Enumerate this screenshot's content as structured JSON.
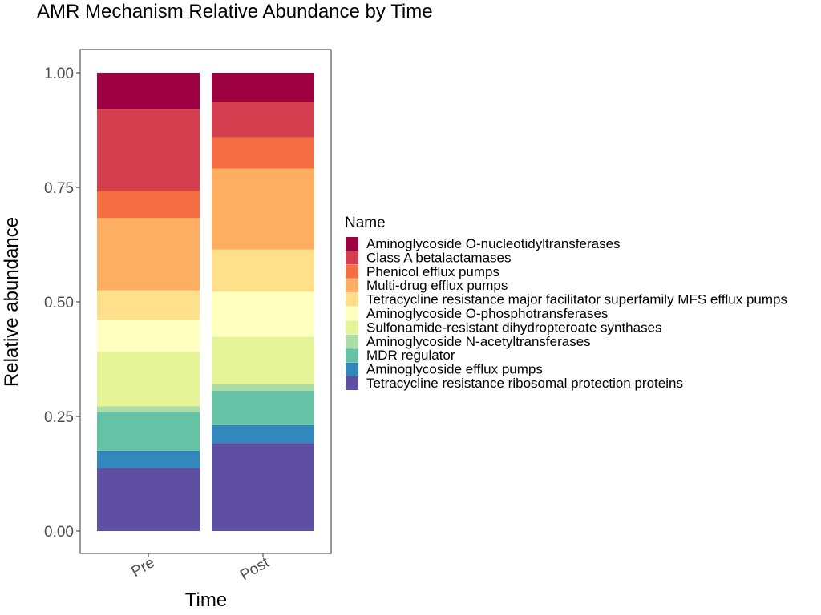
{
  "chart_data": {
    "type": "bar",
    "stacked": true,
    "title": "AMR Mechanism Relative Abundance by Time",
    "xlabel": "Time",
    "ylabel": "Relative abundance",
    "categories": [
      "Pre",
      "Post"
    ],
    "ylim": [
      0,
      1
    ],
    "yticks": [
      0.0,
      0.25,
      0.5,
      0.75,
      1.0
    ],
    "ytick_labels": [
      "0.00",
      "0.25",
      "0.50",
      "0.75",
      "1.00"
    ],
    "grid": false,
    "legend_title": "Name",
    "legend_position": "right",
    "series": [
      {
        "name": "Tetracycline resistance ribosomal protection proteins",
        "color": "#5E4FA2",
        "values": [
          0.137,
          0.192
        ]
      },
      {
        "name": "Aminoglycoside efflux pumps",
        "color": "#3288BD",
        "values": [
          0.038,
          0.039
        ]
      },
      {
        "name": "MDR regulator",
        "color": "#66C2A5",
        "values": [
          0.085,
          0.075
        ]
      },
      {
        "name": "Aminoglycoside N-acetyltransferases",
        "color": "#ABDDA4",
        "values": [
          0.012,
          0.015
        ]
      },
      {
        "name": "Sulfonamide-resistant dihydropteroate synthases",
        "color": "#E6F598",
        "values": [
          0.119,
          0.103
        ]
      },
      {
        "name": "Aminoglycoside O-phosphotransferases",
        "color": "#FFFFBF",
        "values": [
          0.07,
          0.098
        ]
      },
      {
        "name": "Tetracycline resistance major facilitator superfamily MFS efflux pumps",
        "color": "#FEE08B",
        "values": [
          0.064,
          0.092
        ]
      },
      {
        "name": "Multi-drug efflux pumps",
        "color": "#FDAE61",
        "values": [
          0.158,
          0.177
        ]
      },
      {
        "name": "Phenicol efflux pumps",
        "color": "#F46D43",
        "values": [
          0.06,
          0.068
        ]
      },
      {
        "name": "Class A betalactamases",
        "color": "#D53E4F",
        "values": [
          0.178,
          0.078
        ]
      },
      {
        "name": "Aminoglycoside O-nucleotidyltransferases",
        "color": "#9E0142",
        "values": [
          0.079,
          0.063
        ]
      }
    ]
  }
}
